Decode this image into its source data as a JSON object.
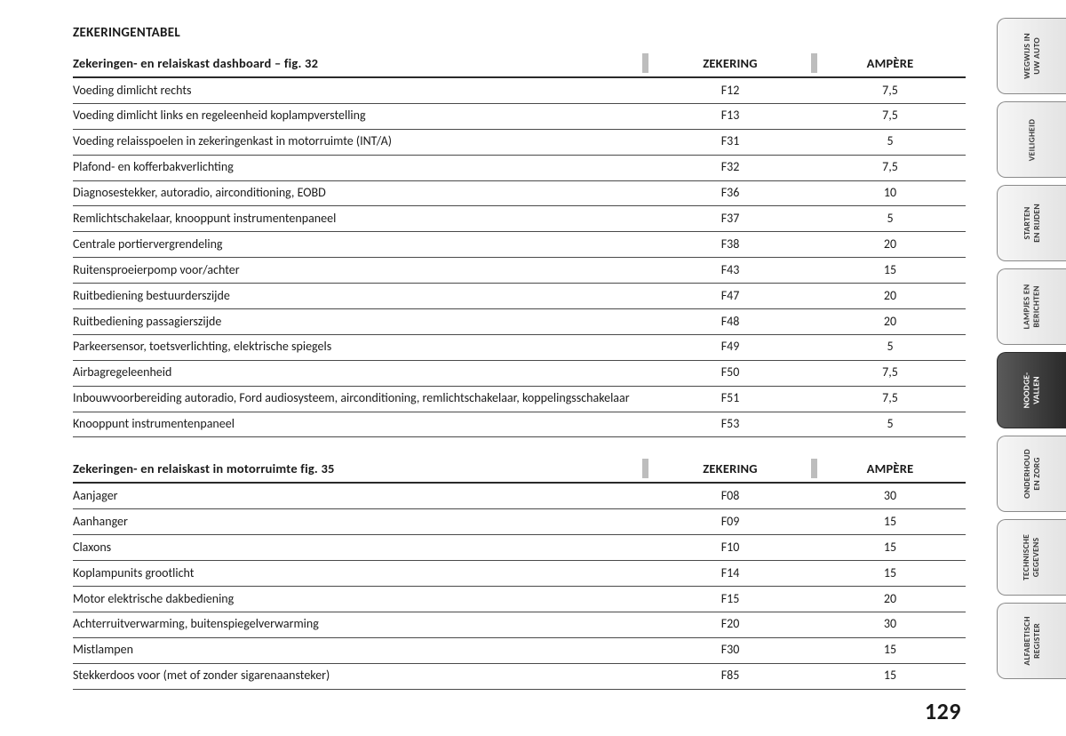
{
  "page": {
    "section_title": "ZEKERINGENTABEL",
    "page_number": "129"
  },
  "table1": {
    "header_desc": "Zekeringen- en relaiskast dashboard – fig. 32",
    "header_fuse": "ZEKERING",
    "header_amp": "AMPÈRE",
    "rows": [
      {
        "desc": "Voeding dimlicht rechts",
        "fuse": "F12",
        "amp": "7,5"
      },
      {
        "desc": "Voeding dimlicht links en regeleenheid koplampverstelling",
        "fuse": "F13",
        "amp": "7,5"
      },
      {
        "desc": "Voeding relaisspoelen in zekeringenkast in motorruimte (INT/A)",
        "fuse": "F31",
        "amp": "5"
      },
      {
        "desc": "Plafond- en kofferbakverlichting",
        "fuse": "F32",
        "amp": "7,5"
      },
      {
        "desc": "Diagnosestekker, autoradio, airconditioning, EOBD",
        "fuse": "F36",
        "amp": "10"
      },
      {
        "desc": "Remlichtschakelaar, knooppunt instrumentenpaneel",
        "fuse": "F37",
        "amp": "5"
      },
      {
        "desc": "Centrale portiervergrendeling",
        "fuse": "F38",
        "amp": "20"
      },
      {
        "desc": "Ruitensproeierpomp voor/achter",
        "fuse": "F43",
        "amp": "15"
      },
      {
        "desc": "Ruitbediening bestuurderszijde",
        "fuse": "F47",
        "amp": "20"
      },
      {
        "desc": "Ruitbediening passagierszijde",
        "fuse": "F48",
        "amp": "20"
      },
      {
        "desc": "Parkeersensor, toetsverlichting, elektrische spiegels",
        "fuse": "F49",
        "amp": "5"
      },
      {
        "desc": "Airbagregeleenheid",
        "fuse": "F50",
        "amp": "7,5"
      },
      {
        "desc": "Inbouwvoorbereiding autoradio, Ford audiosysteem, airconditioning, remlichtschakelaar, koppelingsschakelaar",
        "fuse": "F51",
        "amp": "7,5"
      },
      {
        "desc": "Knooppunt instrumentenpaneel",
        "fuse": "F53",
        "amp": "5"
      }
    ]
  },
  "table2": {
    "header_desc": "Zekeringen- en relaiskast in motorruimte fig. 35",
    "header_fuse": "ZEKERING",
    "header_amp": "AMPÈRE",
    "rows": [
      {
        "desc": "Aanjager",
        "fuse": "F08",
        "amp": "30"
      },
      {
        "desc": "Aanhanger",
        "fuse": "F09",
        "amp": "15"
      },
      {
        "desc": "Claxons",
        "fuse": "F10",
        "amp": "15"
      },
      {
        "desc": "Koplampunits grootlicht",
        "fuse": "F14",
        "amp": "15"
      },
      {
        "desc": "Motor elektrische dakbediening",
        "fuse": "F15",
        "amp": "20"
      },
      {
        "desc": "Achterruitverwarming, buitenspiegelverwarming",
        "fuse": "F20",
        "amp": "30"
      },
      {
        "desc": "Mistlampen",
        "fuse": "F30",
        "amp": "15"
      },
      {
        "desc": "Stekkerdoos voor (met of zonder sigarenaansteker)",
        "fuse": "F85",
        "amp": "15"
      }
    ]
  },
  "tabs": [
    {
      "label": "WEGWIJS IN\nUW AUTO",
      "active": false
    },
    {
      "label": "VEILIGHEID",
      "active": false
    },
    {
      "label": "STARTEN\nEN RIJDEN",
      "active": false
    },
    {
      "label": "LAMPJES EN\nBERICHTEN",
      "active": false
    },
    {
      "label": "NOODGE-\nVALLEN",
      "active": true
    },
    {
      "label": "ONDERHOUD\nEN ZORG",
      "active": false
    },
    {
      "label": "TECHNISCHE\nGEGEVENS",
      "active": false
    },
    {
      "label": "ALFABETISCH\nREGISTER",
      "active": false
    }
  ]
}
